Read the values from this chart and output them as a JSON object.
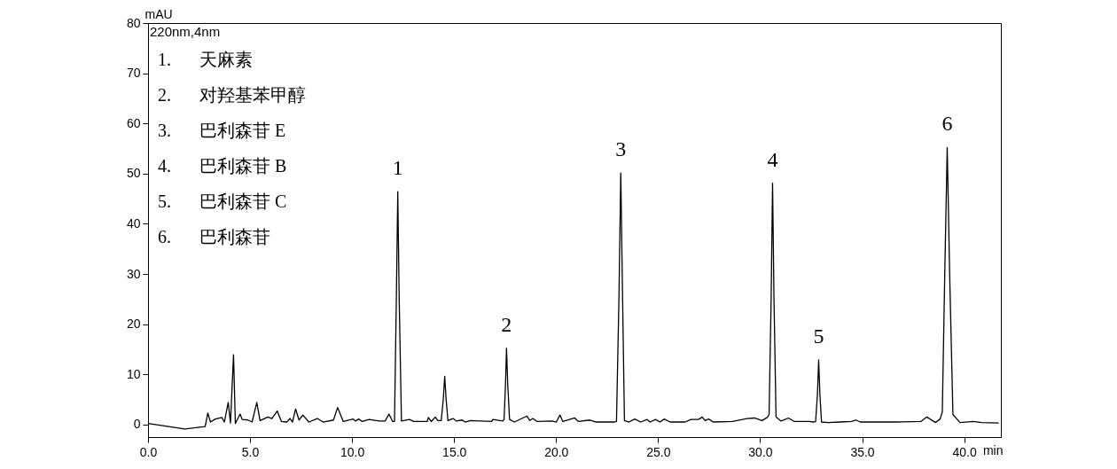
{
  "chart_data": {
    "type": "line",
    "xlabel": "min",
    "ylabel": "mAU",
    "xlim": [
      0,
      41.8
    ],
    "ylim": [
      -2.5,
      80
    ],
    "xticks": [
      {
        "value": 0,
        "label": "0.0"
      },
      {
        "value": 5,
        "label": "5.0"
      },
      {
        "value": 10,
        "label": "10.0"
      },
      {
        "value": 15,
        "label": "15.0"
      },
      {
        "value": 20,
        "label": "20.0"
      },
      {
        "value": 25,
        "label": "25.0"
      },
      {
        "value": 30,
        "label": "30.0"
      },
      {
        "value": 35,
        "label": "35.0"
      },
      {
        "value": 40,
        "label": "40.0"
      }
    ],
    "yticks": [
      0,
      10,
      20,
      30,
      40,
      50,
      60,
      70,
      80
    ],
    "grid": false,
    "annotations": [
      "220nm,4nm",
      "1. 天麻素",
      "2. 对羟基苯甲醇",
      "3. 巴利森苷 E",
      "4. 巴利森苷 B",
      "5. 巴利森苷 C",
      "6. 巴利森苷",
      {
        "text": "1",
        "x": 12.24,
        "y": 46.4
      },
      {
        "text": "2",
        "x": 17.57,
        "y": 15.2
      },
      {
        "text": "3",
        "x": 23.17,
        "y": 50.1
      },
      {
        "text": "4",
        "x": 30.61,
        "y": 48.1
      },
      {
        "text": "5",
        "x": 32.87,
        "y": 12.9
      },
      {
        "text": "6",
        "x": 39.17,
        "y": 55.2
      }
    ],
    "series": [
      {
        "color": "#000000",
        "x": [
          0,
          1.8,
          2.8,
          2.93,
          3.06,
          3.3,
          3.62,
          3.74,
          3.93,
          4.04,
          4.19,
          4.28,
          4.51,
          4.62,
          4.9,
          5.1,
          5.33,
          5.49,
          5.88,
          6.07,
          6.33,
          6.54,
          6.8,
          6.96,
          7.08,
          7.23,
          7.4,
          7.59,
          7.88,
          8.3,
          8.58,
          9.09,
          9.29,
          9.57,
          10.05,
          10.17,
          10.32,
          10.5,
          10.83,
          11.33,
          11.62,
          11.81,
          11.99,
          12.08,
          12.17,
          12.24,
          12.31,
          12.42,
          12.81,
          13.03,
          13.68,
          13.74,
          13.88,
          14.08,
          14.2,
          14.37,
          14.47,
          14.54,
          14.61,
          14.7,
          14.96,
          15.1,
          15.4,
          15.54,
          15.8,
          16.84,
          16.9,
          17.39,
          17.45,
          17.52,
          17.57,
          17.63,
          17.72,
          17.96,
          18.57,
          18.71,
          18.86,
          19.07,
          19.8,
          20.01,
          20.19,
          20.33,
          20.91,
          21.1,
          21.65,
          21.97,
          22.84,
          22.96,
          23.08,
          23.17,
          23.26,
          23.35,
          23.57,
          23.86,
          24.14,
          24.46,
          24.61,
          24.87,
          25.09,
          25.3,
          25.59,
          26.32,
          26.61,
          26.97,
          27.16,
          27.3,
          27.48,
          27.7,
          28.64,
          29.36,
          29.72,
          30.09,
          30.35,
          30.44,
          30.54,
          30.61,
          30.68,
          30.78,
          31.03,
          31.39,
          31.68,
          32.41,
          32.62,
          32.72,
          32.81,
          32.87,
          32.93,
          33.01,
          33.32,
          33.9,
          34.48,
          34.7,
          34.91,
          36.65,
          37.88,
          38.17,
          38.6,
          38.82,
          38.93,
          39.05,
          39.17,
          39.29,
          39.45,
          39.8,
          40.45,
          40.87,
          41.7
        ],
        "values": [
          0.2,
          -0.9,
          -0.4,
          2.3,
          0.5,
          1.1,
          1.4,
          0.5,
          4.4,
          0.3,
          13.9,
          0.2,
          2.1,
          1.0,
          0.9,
          0.5,
          4.4,
          0.8,
          1.5,
          1.2,
          2.7,
          0.6,
          0.5,
          1.2,
          0.5,
          3.1,
          0.9,
          1.9,
          0.5,
          1.2,
          0.5,
          0.9,
          3.4,
          0.6,
          1.1,
          0.7,
          1.1,
          0.6,
          1.0,
          0.7,
          0.7,
          2.1,
          0.6,
          0.6,
          25,
          46.4,
          25,
          0.7,
          1.0,
          0.6,
          0.6,
          1.4,
          0.6,
          1.5,
          0.8,
          0.8,
          5,
          9.6,
          5,
          0.8,
          1.2,
          0.7,
          0.9,
          0.5,
          0.8,
          0.6,
          1.0,
          0.7,
          1.0,
          8,
          15.2,
          8,
          1.0,
          0.5,
          1.7,
          0.8,
          1.2,
          0.6,
          0.7,
          0.5,
          1.9,
          0.6,
          1.3,
          0.6,
          0.9,
          0.5,
          0.5,
          0.6,
          25,
          50.1,
          25,
          0.8,
          0.5,
          1.1,
          0.5,
          1.0,
          0.5,
          1.0,
          0.5,
          1.1,
          0.5,
          0.5,
          1.0,
          1.0,
          1.5,
          0.8,
          1.1,
          0.5,
          0.6,
          1.2,
          1.3,
          0.8,
          1.4,
          2,
          25,
          48.1,
          25,
          1.5,
          0.7,
          1.3,
          0.6,
          0.6,
          0.5,
          0.6,
          6,
          12.9,
          6,
          0.5,
          0.4,
          0.5,
          0.6,
          0.9,
          0.5,
          0.5,
          0.6,
          1.5,
          0.4,
          1.1,
          2.5,
          30,
          55.2,
          30,
          2,
          0.4,
          0.6,
          0.4,
          0.3
        ]
      }
    ]
  }
}
